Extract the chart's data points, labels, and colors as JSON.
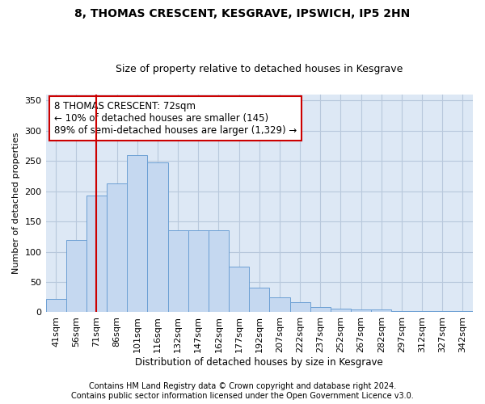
{
  "title": "8, THOMAS CRESCENT, KESGRAVE, IPSWICH, IP5 2HN",
  "subtitle": "Size of property relative to detached houses in Kesgrave",
  "xlabel": "Distribution of detached houses by size in Kesgrave",
  "ylabel": "Number of detached properties",
  "categories": [
    "41sqm",
    "56sqm",
    "71sqm",
    "86sqm",
    "101sqm",
    "116sqm",
    "132sqm",
    "147sqm",
    "162sqm",
    "177sqm",
    "192sqm",
    "207sqm",
    "222sqm",
    "237sqm",
    "252sqm",
    "267sqm",
    "282sqm",
    "297sqm",
    "312sqm",
    "327sqm",
    "342sqm"
  ],
  "values": [
    22,
    120,
    193,
    213,
    260,
    248,
    136,
    136,
    136,
    75,
    40,
    25,
    16,
    8,
    6,
    5,
    5,
    2,
    2,
    2,
    2
  ],
  "bar_color": "#c5d8f0",
  "bar_edge_color": "#6ca0d4",
  "vline_color": "#cc0000",
  "vline_x": 2.0,
  "annotation_text": "8 THOMAS CRESCENT: 72sqm\n← 10% of detached houses are smaller (145)\n89% of semi-detached houses are larger (1,329) →",
  "annotation_box_facecolor": "#ffffff",
  "annotation_box_edgecolor": "#cc0000",
  "ylim": [
    0,
    360
  ],
  "yticks": [
    0,
    50,
    100,
    150,
    200,
    250,
    300,
    350
  ],
  "background_color": "#ffffff",
  "axes_facecolor": "#dde8f5",
  "grid_color": "#b8c8dc",
  "footer": "Contains HM Land Registry data © Crown copyright and database right 2024.\nContains public sector information licensed under the Open Government Licence v3.0.",
  "title_fontsize": 10,
  "subtitle_fontsize": 9,
  "xlabel_fontsize": 8.5,
  "ylabel_fontsize": 8,
  "tick_fontsize": 8,
  "annotation_fontsize": 8.5,
  "footer_fontsize": 7
}
